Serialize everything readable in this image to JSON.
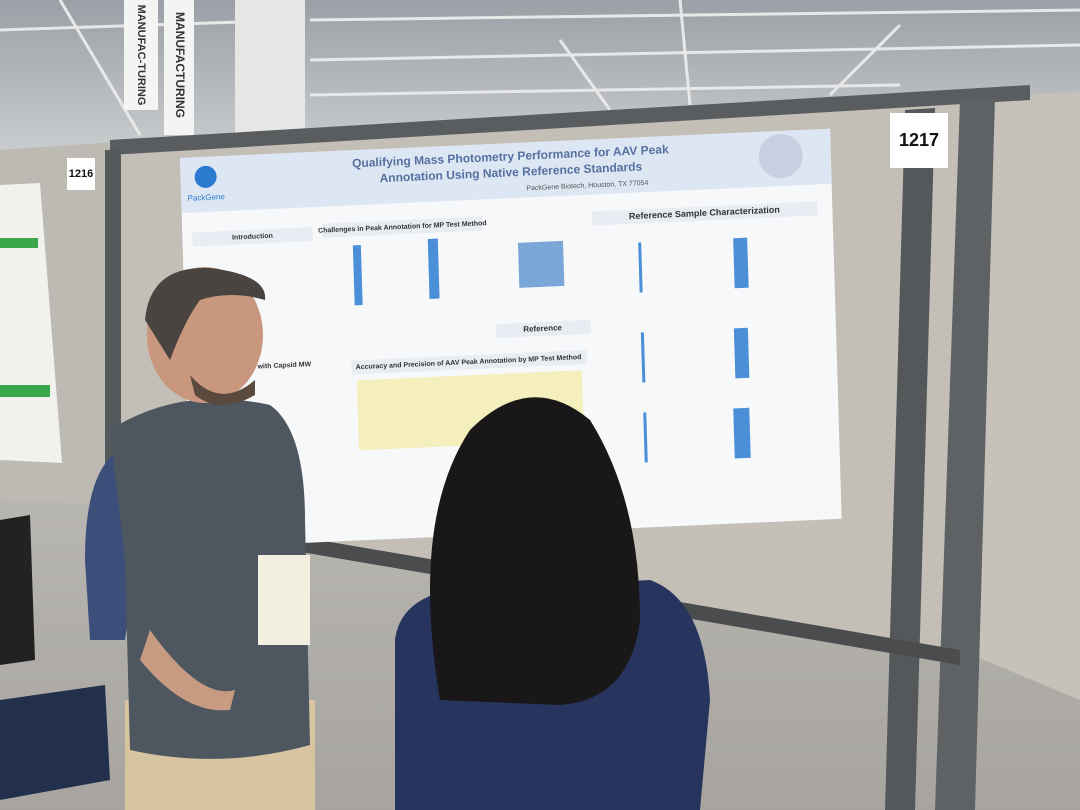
{
  "banners": [
    "MANUFAC-TURING",
    "MANUFACTURING"
  ],
  "booths": [
    "1216",
    "1217"
  ],
  "poster": {
    "title_line1": "Qualifying Mass Photometry Performance for AAV Peak",
    "title_line2": "Annotation Using Native Reference Standards",
    "org": "PackGene",
    "affiliation": "PackGene Biotech, Houston, TX 77054",
    "sections": [
      "Introduction",
      "Challenges in Peak Annotation for MP Test Method",
      "Reference Sample Characterization",
      "Reference",
      "Accuracy and Precision of AAV Peak Annotation by MP Test Method",
      "Size with Capsid MW"
    ]
  }
}
